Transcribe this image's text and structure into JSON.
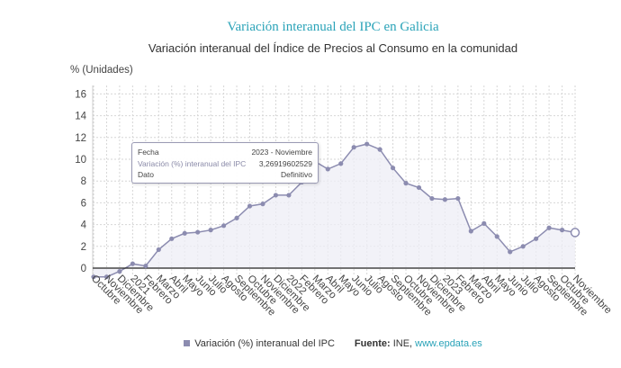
{
  "title": "Variación interanual del IPC en Galicia",
  "subtitle": "Variación interanual del Índice de Precios al Consumo en la comunidad",
  "unit_label": "% (Unidades)",
  "tooltip": {
    "rows": [
      {
        "key": "Fecha",
        "value": "2023 - Noviembre"
      },
      {
        "key": "Variación (%) interanual del IPC",
        "value": "3,26919602529"
      },
      {
        "key": "Dato",
        "value": "Definitivo"
      }
    ]
  },
  "legend": {
    "series_label": "Variación (%) interanual del IPC",
    "source_label": "Fuente:",
    "source_text": "INE, ",
    "source_link": "www.epdata.es"
  },
  "colors": {
    "line": "#8c8cb0",
    "fill": "#eeeef6",
    "grid": "#d6d6d6",
    "title": "#2aa3b8"
  },
  "chart_data": {
    "type": "area",
    "grid": true,
    "legend_position": "bottom",
    "ylim": [
      -1,
      17
    ],
    "yticks": [
      0,
      2,
      4,
      6,
      8,
      10,
      12,
      14,
      16
    ],
    "categories": [
      "Octubre",
      "Noviembre",
      "Diciembre",
      "2021",
      "Febrero",
      "Marzo",
      "Abril",
      "Mayo",
      "Junio",
      "Julio",
      "Agosto",
      "Septiembre",
      "Octubre",
      "Noviembre",
      "Diciembre",
      "2022",
      "Febrero",
      "Marzo",
      "Abril",
      "Mayo",
      "Junio",
      "Julio",
      "Agosto",
      "Septiembre",
      "Octubre",
      "Noviembre",
      "Diciembre",
      "2023",
      "Febrero",
      "Marzo",
      "Abril",
      "Mayo",
      "Junio",
      "Julio",
      "Agosto",
      "Septiembre",
      "Octubre",
      "Noviembre"
    ],
    "series": [
      {
        "name": "Variación (%) interanual del IPC",
        "values": [
          -0.8,
          -0.8,
          -0.3,
          0.4,
          0.2,
          1.7,
          2.7,
          3.2,
          3.3,
          3.5,
          3.9,
          4.6,
          5.7,
          5.9,
          6.7,
          6.7,
          7.9,
          9.8,
          9.1,
          9.6,
          11.1,
          11.4,
          10.9,
          9.2,
          7.8,
          7.4,
          6.4,
          6.3,
          6.4,
          3.4,
          4.1,
          2.9,
          1.5,
          2.0,
          2.7,
          3.7,
          3.5,
          3.27
        ]
      }
    ]
  }
}
